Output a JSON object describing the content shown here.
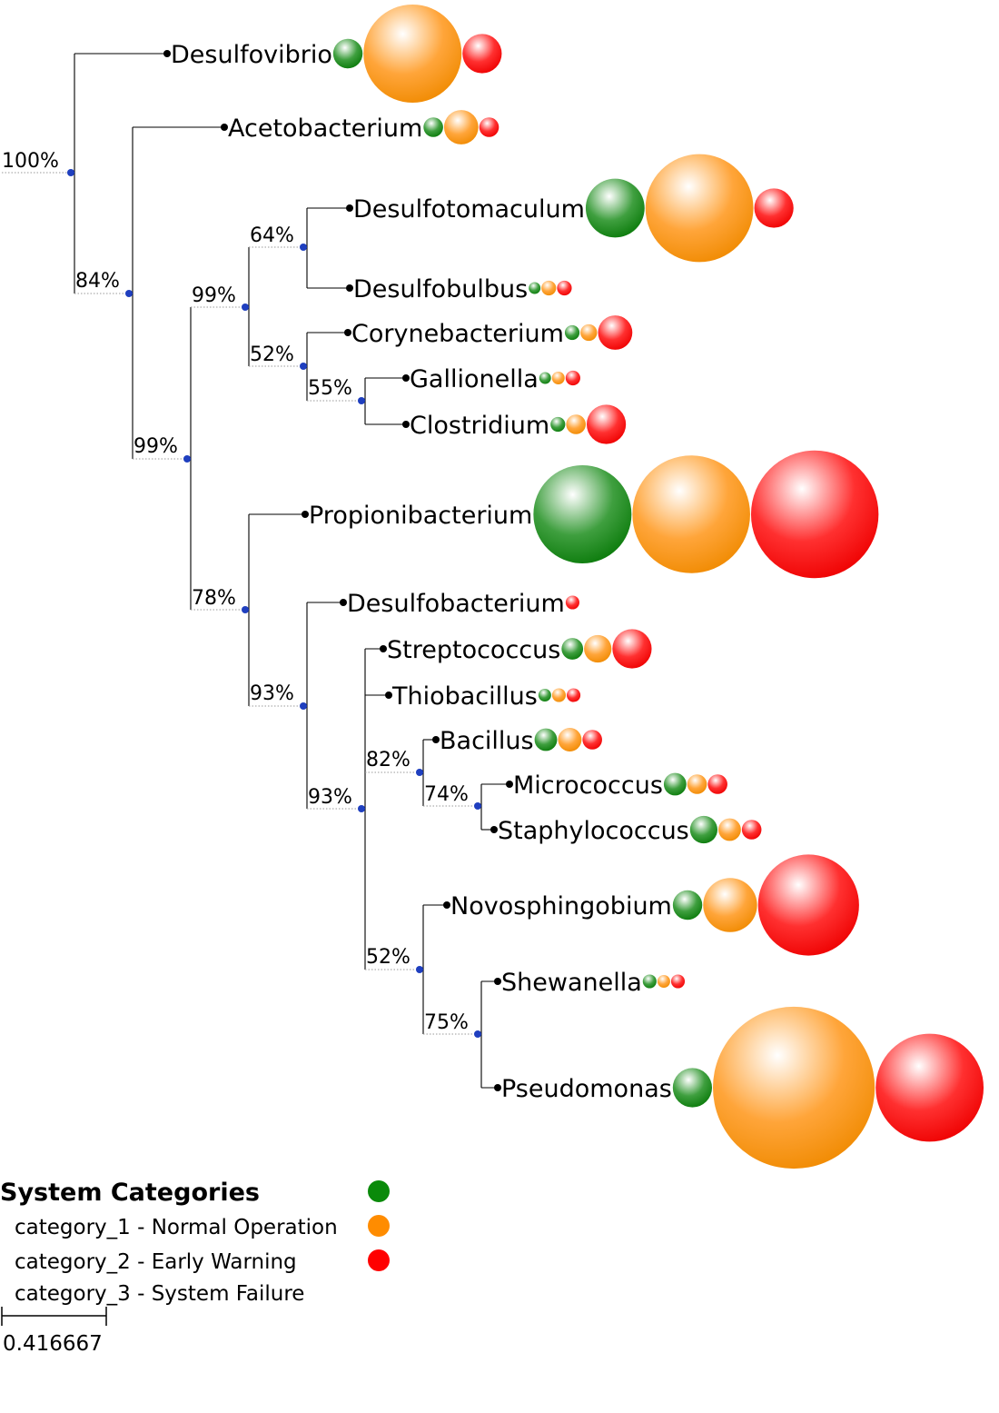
{
  "colors": {
    "category_1": "#0a8a0a",
    "category_2": "#ff8c00",
    "category_3": "#ff0000",
    "node": "#1f3fbf",
    "branch": "#000000"
  },
  "tree": {
    "tips": [
      {
        "id": "desulfovibrio",
        "label": "Desulfovibrio",
        "values": [
          0.3,
          1.0,
          0.4
        ]
      },
      {
        "id": "acetobacterium",
        "label": "Acetobacterium",
        "values": [
          0.2,
          0.35,
          0.2
        ]
      },
      {
        "id": "desulfotomaculum",
        "label": "Desulfotomaculum",
        "values": [
          0.6,
          1.1,
          0.4
        ]
      },
      {
        "id": "desulfobulbus",
        "label": "Desulfobulbus",
        "values": [
          0.12,
          0.15,
          0.15
        ]
      },
      {
        "id": "corynebacterium",
        "label": "Corynebacterium",
        "values": [
          0.15,
          0.17,
          0.35
        ]
      },
      {
        "id": "gallionella",
        "label": "Gallionella",
        "values": [
          0.12,
          0.13,
          0.15
        ]
      },
      {
        "id": "clostridium",
        "label": "Clostridium",
        "values": [
          0.15,
          0.2,
          0.4
        ]
      },
      {
        "id": "propionibacterium",
        "label": "Propionibacterium",
        "values": [
          1.0,
          1.2,
          1.3
        ]
      },
      {
        "id": "desulfobacterium",
        "label": "Desulfobacterium",
        "values": [
          0,
          0,
          0.14
        ]
      },
      {
        "id": "streptococcus",
        "label": "Streptococcus",
        "values": [
          0.22,
          0.28,
          0.4
        ]
      },
      {
        "id": "thiobacillus",
        "label": "Thiobacillus",
        "values": [
          0.13,
          0.14,
          0.14
        ]
      },
      {
        "id": "bacillus",
        "label": "Bacillus",
        "values": [
          0.23,
          0.24,
          0.2
        ]
      },
      {
        "id": "micrococcus",
        "label": "Micrococcus",
        "values": [
          0.23,
          0.2,
          0.2
        ]
      },
      {
        "id": "staphylococcus",
        "label": "Staphylococcus",
        "values": [
          0.28,
          0.23,
          0.2
        ]
      },
      {
        "id": "novosphingobium",
        "label": "Novosphingobium",
        "values": [
          0.3,
          0.55,
          1.03
        ]
      },
      {
        "id": "shewanella",
        "label": "Shewanella",
        "values": [
          0.14,
          0.13,
          0.14
        ]
      },
      {
        "id": "pseudomonas",
        "label": "Pseudomonas",
        "values": [
          0.4,
          1.65,
          1.1
        ]
      }
    ],
    "internal_nodes": [
      {
        "id": "n_root",
        "support": "100%"
      },
      {
        "id": "n_84",
        "support": "84%"
      },
      {
        "id": "n_99a",
        "support": "99%"
      },
      {
        "id": "n_99b",
        "support": "99%"
      },
      {
        "id": "n_64",
        "support": "64%"
      },
      {
        "id": "n_52a",
        "support": "52%"
      },
      {
        "id": "n_55",
        "support": "55%"
      },
      {
        "id": "n_78",
        "support": "78%"
      },
      {
        "id": "n_93a",
        "support": "93%"
      },
      {
        "id": "n_93b",
        "support": "93%"
      },
      {
        "id": "n_82",
        "support": "82%"
      },
      {
        "id": "n_74",
        "support": "74%"
      },
      {
        "id": "n_52b",
        "support": "52%"
      },
      {
        "id": "n_75",
        "support": "75%"
      }
    ]
  },
  "legend": {
    "title": "System Categories",
    "items": [
      {
        "label": "category_1 - Normal Operation",
        "color": "#0a8a0a"
      },
      {
        "label": "category_2 - Early Warning",
        "color": "#ff8c00"
      },
      {
        "label": "category_3 - System Failure",
        "color": "#ff0000"
      }
    ]
  },
  "scale_bar": {
    "label": "0.416667"
  }
}
